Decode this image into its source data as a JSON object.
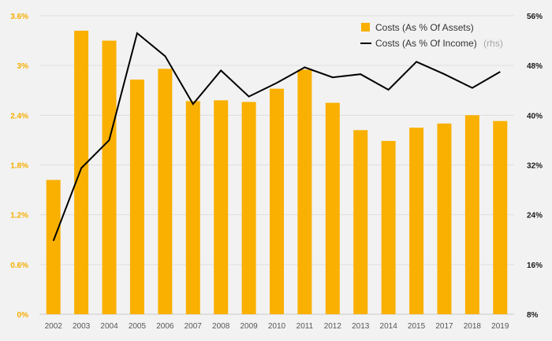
{
  "chart_data": {
    "type": "bar",
    "categories": [
      "2002",
      "2003",
      "2004",
      "2005",
      "2006",
      "2007",
      "2008",
      "2009",
      "2010",
      "2011",
      "2012",
      "2013",
      "2014",
      "2015",
      "2017",
      "2018",
      "2019"
    ],
    "series": [
      {
        "name": "Costs (As % Of Assets)",
        "type": "bar",
        "axis": "left",
        "color": "#f9b000",
        "values": [
          1.62,
          3.42,
          3.3,
          2.83,
          2.96,
          2.57,
          2.58,
          2.56,
          2.72,
          2.95,
          2.55,
          2.22,
          2.09,
          2.25,
          2.3,
          2.4,
          2.33
        ]
      },
      {
        "name": "Costs (As % Of Income)",
        "name_note": "(rhs)",
        "type": "line",
        "axis": "right",
        "color": "#000000",
        "values": [
          19.8,
          31.5,
          36.0,
          53.2,
          49.5,
          41.8,
          47.2,
          43.0,
          45.2,
          47.7,
          46.1,
          46.6,
          44.1,
          48.6,
          46.6,
          44.4,
          47.0
        ]
      }
    ],
    "y_left": {
      "min": 0,
      "max": 3.6,
      "ticks": [
        "0%",
        "0.6%",
        "1.2%",
        "1.8%",
        "2.4%",
        "3%",
        "3.6%"
      ]
    },
    "y_right": {
      "min": 8,
      "max": 56,
      "ticks": [
        "8%",
        "16%",
        "24%",
        "32%",
        "40%",
        "48%",
        "56%"
      ]
    },
    "grid": true,
    "legend_position": "top-right",
    "title": "",
    "xlabel": "",
    "ylabel": ""
  }
}
